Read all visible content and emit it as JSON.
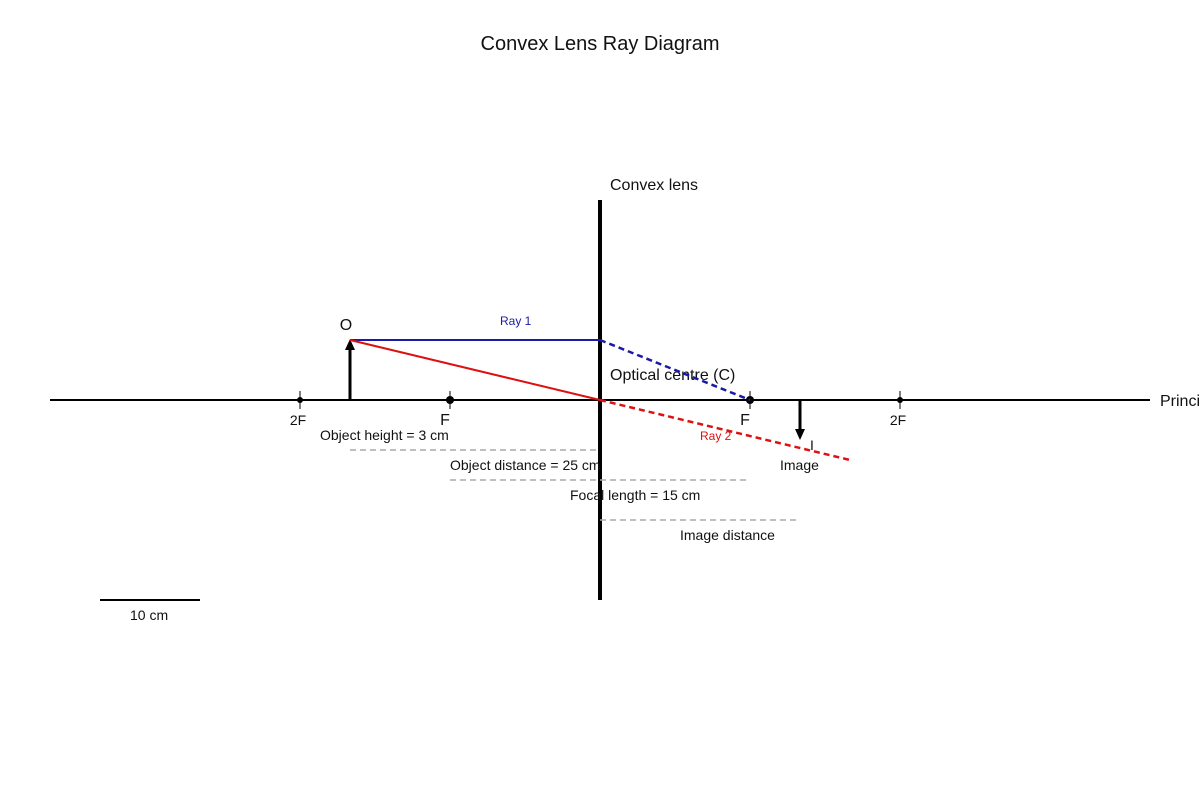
{
  "title": "Convex Lens Ray Diagram",
  "labels": {
    "lens": "Convex lens",
    "optical_centre": "Optical centre (C)",
    "principal_axis": "Principal axis",
    "object_marker": "O",
    "image_marker": "I",
    "ray1": "Ray 1",
    "ray2": "Ray 2",
    "f_left": "F",
    "twof_left": "2F",
    "f_right": "F",
    "twof_right": "2F",
    "object_height": "Object height = 3 cm",
    "object_distance": "Object distance = 25 cm",
    "focal_length": "Focal length = 15 cm",
    "image_word": "Image",
    "image_distance": "Image distance",
    "scale_bar": "10 cm"
  },
  "colors": {
    "ray1": "#1a1aaa",
    "ray2": "#dd1111",
    "axis": "#000000",
    "guide": "#aaaaaa"
  }
}
